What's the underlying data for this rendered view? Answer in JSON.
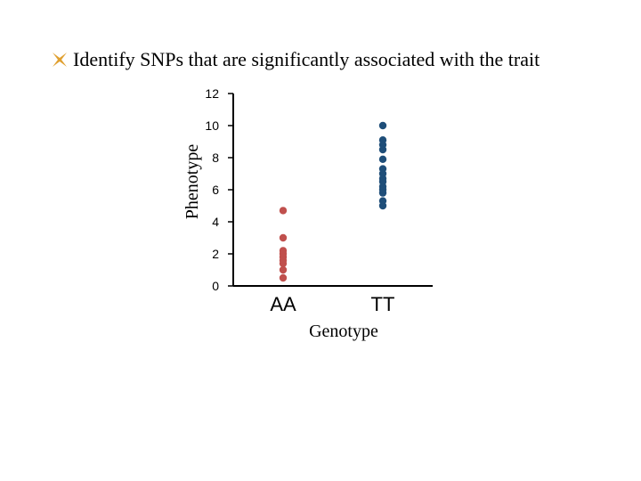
{
  "slide": {
    "bullet_text": "Identify SNPs that are significantly associated with the trait",
    "bullet_icon": "x-mark-bullet-icon",
    "bullet_color": "#E0A030"
  },
  "chart_data": {
    "type": "scatter",
    "xlabel": "Genotype",
    "ylabel": "Phenotype",
    "categories": [
      "AA",
      "TT"
    ],
    "ylim": [
      0,
      12
    ],
    "yticks": [
      0,
      2,
      4,
      6,
      8,
      10,
      12
    ],
    "grid": false,
    "series": [
      {
        "category": "AA",
        "color": "#C0504D",
        "values": [
          4.7,
          3.0,
          2.2,
          2.0,
          1.8,
          1.6,
          1.4,
          1.0,
          0.5
        ]
      },
      {
        "category": "TT",
        "color": "#1F4E79",
        "values": [
          10.0,
          9.1,
          8.8,
          8.5,
          7.9,
          7.3,
          7.0,
          6.7,
          6.5,
          6.2,
          6.0,
          5.8,
          5.3,
          5.0
        ]
      }
    ]
  }
}
